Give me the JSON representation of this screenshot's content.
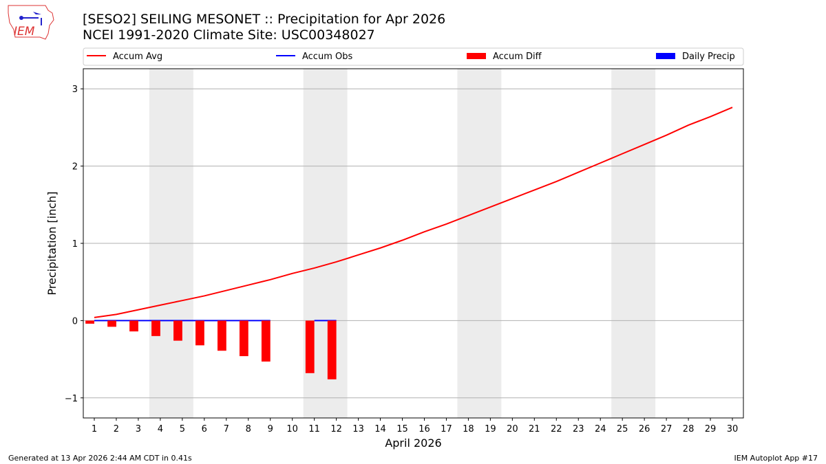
{
  "title_line1": "[SESO2] SEILING MESONET :: Precipitation for Apr 2026",
  "title_line2": "NCEI 1991-2020 Climate Site: USC00348027",
  "logo_text": "IEM",
  "footer_left": "Generated at 13 Apr 2026 2:44 AM CDT in 0.41s",
  "footer_right": "IEM Autoplot App #17",
  "chart_data": {
    "type": "line",
    "xlabel": "April 2026",
    "ylabel": "Precipitation [inch]",
    "xlim": [
      0.5,
      30.5
    ],
    "ylim": [
      -1.26,
      3.26
    ],
    "yticks": [
      -1,
      0,
      1,
      2,
      3
    ],
    "ytick_labels": [
      "−1",
      "0",
      "1",
      "2",
      "3"
    ],
    "x": [
      1,
      2,
      3,
      4,
      5,
      6,
      7,
      8,
      9,
      10,
      11,
      12,
      13,
      14,
      15,
      16,
      17,
      18,
      19,
      20,
      21,
      22,
      23,
      24,
      25,
      26,
      27,
      28,
      29,
      30
    ],
    "grid": "horizontal",
    "legend_position": "top",
    "weekend_shading": [
      [
        3.5,
        5.5
      ],
      [
        10.5,
        12.5
      ],
      [
        17.5,
        19.5
      ],
      [
        24.5,
        26.5
      ]
    ],
    "series": [
      {
        "name": "Accum Avg",
        "type": "line",
        "color": "#ff0000",
        "values": [
          0.04,
          0.08,
          0.14,
          0.2,
          0.26,
          0.32,
          0.39,
          0.46,
          0.53,
          0.61,
          0.68,
          0.76,
          0.85,
          0.94,
          1.04,
          1.15,
          1.25,
          1.36,
          1.47,
          1.58,
          1.69,
          1.8,
          1.92,
          2.04,
          2.16,
          2.28,
          2.4,
          2.53,
          2.64,
          2.76
        ]
      },
      {
        "name": "Accum Obs",
        "type": "line",
        "color": "#0000ff",
        "values": [
          0,
          0,
          0,
          0,
          0,
          0,
          0,
          0,
          0,
          null,
          0,
          0,
          null,
          null,
          null,
          null,
          null,
          null,
          null,
          null,
          null,
          null,
          null,
          null,
          null,
          null,
          null,
          null,
          null,
          null
        ]
      },
      {
        "name": "Accum Diff",
        "type": "bar",
        "color": "#ff0000",
        "values": [
          -0.04,
          -0.08,
          -0.14,
          -0.2,
          -0.26,
          -0.32,
          -0.39,
          -0.46,
          -0.53,
          null,
          -0.68,
          -0.76,
          null,
          null,
          null,
          null,
          null,
          null,
          null,
          null,
          null,
          null,
          null,
          null,
          null,
          null,
          null,
          null,
          null,
          null
        ]
      },
      {
        "name": "Daily Precip",
        "type": "bar",
        "color": "#0000ff",
        "values": [
          0,
          0,
          0,
          0,
          0,
          0,
          0,
          0,
          0,
          null,
          0,
          0,
          null,
          null,
          null,
          null,
          null,
          null,
          null,
          null,
          null,
          null,
          null,
          null,
          null,
          null,
          null,
          null,
          null,
          null
        ]
      }
    ]
  }
}
